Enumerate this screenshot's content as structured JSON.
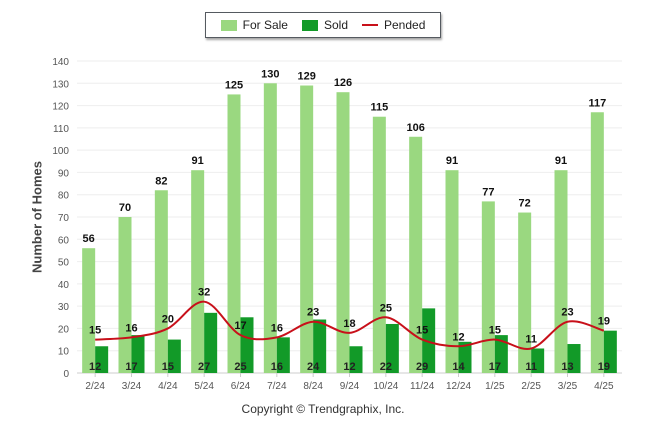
{
  "legend": {
    "for_sale_label": "For Sale",
    "sold_label": "Sold",
    "pended_label": "Pended"
  },
  "footer": {
    "credit": "Copyright © Trendgraphix, Inc."
  },
  "colors": {
    "for_sale": "#9ad880",
    "sold": "#129a28",
    "pended": "#c8101a",
    "grid": "#eeeeee",
    "axis_text": "#555555"
  },
  "chart_data": {
    "type": "bar",
    "title": "",
    "xlabel": "",
    "ylabel": "Number of Homes",
    "ylim": [
      0,
      140
    ],
    "ytick_step": 10,
    "grid": true,
    "legend_position": "top-center",
    "categories": [
      "2/24",
      "3/24",
      "4/24",
      "5/24",
      "6/24",
      "7/24",
      "8/24",
      "9/24",
      "10/24",
      "11/24",
      "12/24",
      "1/25",
      "2/25",
      "3/25",
      "4/25"
    ],
    "series": [
      {
        "name": "For Sale",
        "type": "bar",
        "values": [
          56,
          70,
          82,
          91,
          125,
          130,
          129,
          126,
          115,
          106,
          91,
          77,
          72,
          91,
          117
        ]
      },
      {
        "name": "Sold",
        "type": "bar",
        "values": [
          12,
          17,
          15,
          27,
          25,
          16,
          24,
          12,
          22,
          29,
          14,
          17,
          11,
          13,
          19
        ]
      },
      {
        "name": "Pended",
        "type": "line",
        "values": [
          15,
          16,
          20,
          32,
          17,
          16,
          23,
          18,
          25,
          15,
          12,
          15,
          11,
          23,
          19
        ]
      }
    ]
  }
}
